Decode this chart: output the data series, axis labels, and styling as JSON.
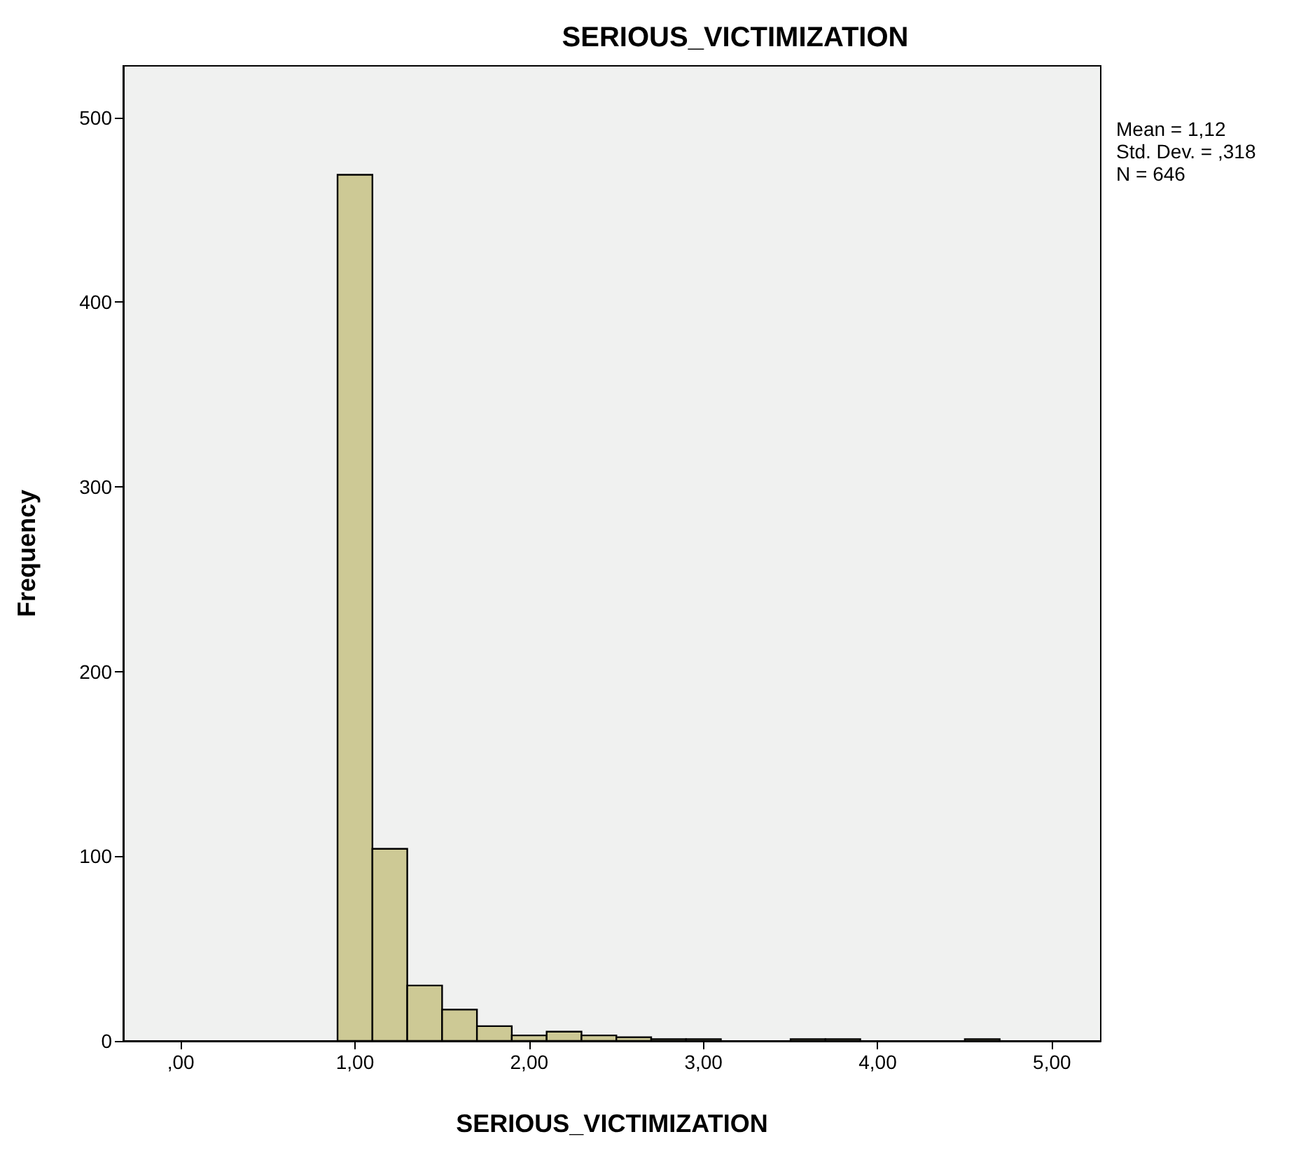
{
  "chart_data": {
    "type": "histogram",
    "title": "SERIOUS_VICTIMIZATION",
    "xlabel": "SERIOUS_VICTIMIZATION",
    "ylabel": "Frequency",
    "bins": [
      0.9,
      1.1,
      1.3,
      1.5,
      1.7,
      1.9,
      2.1,
      2.3,
      2.5,
      2.7,
      2.9,
      3.1,
      3.3,
      3.5,
      3.7,
      3.9,
      4.1,
      4.3,
      4.5,
      4.7
    ],
    "values": [
      469,
      104,
      30,
      17,
      8,
      3,
      5,
      3,
      2,
      1,
      1,
      0,
      0,
      1,
      1,
      0,
      0,
      0,
      1
    ],
    "color": "#cdc995",
    "xlim": [
      -0.33,
      5.28
    ],
    "xticks": [
      {
        "value": 0,
        "label": ",00"
      },
      {
        "value": 1,
        "label": "1,00"
      },
      {
        "value": 2,
        "label": "2,00"
      },
      {
        "value": 3,
        "label": "3,00"
      },
      {
        "value": 4,
        "label": "4,00"
      },
      {
        "value": 5,
        "label": "5,00"
      }
    ],
    "ylim": [
      0,
      528
    ],
    "yticks": [
      0,
      100,
      200,
      300,
      400,
      500
    ],
    "annotations": [
      "Mean = 1,12",
      "Std. Dev. = ,318",
      "N = 646"
    ]
  }
}
